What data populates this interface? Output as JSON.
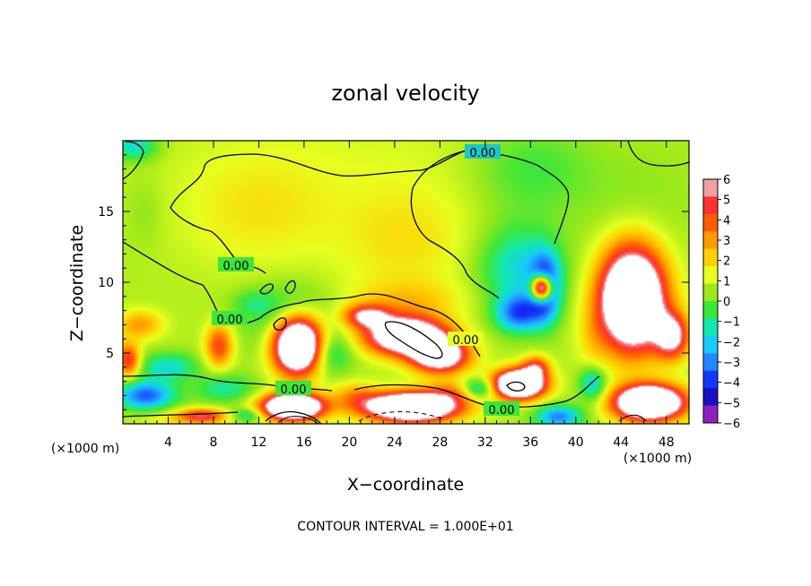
{
  "chart_data": {
    "type": "heatmap",
    "title": "zonal velocity",
    "xlabel": "X−coordinate",
    "ylabel": "Z−coordinate",
    "x_unit": "(×1000 m)",
    "y_unit": "(×1000 m)",
    "xlim": [
      0,
      50
    ],
    "ylim": [
      0,
      20
    ],
    "x_ticks": [
      "4",
      "8",
      "12",
      "16",
      "20",
      "24",
      "28",
      "32",
      "36",
      "40",
      "44",
      "48"
    ],
    "y_ticks": [
      "5",
      "10",
      "15"
    ],
    "colorbar": {
      "range": [
        -6,
        6
      ],
      "levels": [
        "6",
        "5",
        "4",
        "3",
        "2",
        "1",
        "0",
        "−1",
        "−2",
        "−3",
        "−4",
        "−5",
        "−6"
      ],
      "colors": [
        "#f0a0a0",
        "#ff3030",
        "#ff5c00",
        "#ff9a00",
        "#ffd000",
        "#e8ff20",
        "#9ce81a",
        "#3de63a",
        "#12e8b0",
        "#19c8ff",
        "#2288ff",
        "#1238ff",
        "#1a10c0",
        "#8e20c0"
      ],
      "above_max_color": "#ffffff"
    },
    "contour_labels": [
      "0.00",
      "0.00",
      "0.00",
      "0.00",
      "0.00",
      "0.00"
    ],
    "footer": "CONTOUR INTERVAL = 1.000E+01",
    "features": [
      {
        "x": 21,
        "z": 19.4,
        "sx": 16,
        "sz": 4,
        "v": 0.4
      },
      {
        "x": 12,
        "z": 15,
        "sx": 7,
        "sz": 4,
        "v": 1.2
      },
      {
        "x": 25,
        "z": 13,
        "sx": 6,
        "sz": 4,
        "v": 1.3
      },
      {
        "x": 45,
        "z": 16,
        "sx": 6,
        "sz": 4,
        "v": -0.4
      },
      {
        "x": 36,
        "z": 18,
        "sx": 5,
        "sz": 3,
        "v": -1.3
      },
      {
        "x": 35,
        "z": 11,
        "sx": 3.5,
        "sz": 3,
        "v": -2.6
      },
      {
        "x": 37.3,
        "z": 9.6,
        "sx": 1.3,
        "sz": 2.2,
        "v": -5.5
      },
      {
        "x": 35,
        "z": 7.8,
        "sx": 2,
        "sz": 1.3,
        "v": -4.2
      },
      {
        "x": 37,
        "z": 9.6,
        "sx": 0.9,
        "sz": 0.9,
        "v": 12
      },
      {
        "x": 1,
        "z": 19.6,
        "sx": 2,
        "sz": 1,
        "v": -2.5
      },
      {
        "x": 2,
        "z": 15,
        "sx": 1.5,
        "sz": 2.5,
        "v": -0.5
      },
      {
        "x": 25,
        "z": 6.2,
        "sx": 3.5,
        "sz": 1.3,
        "v": 9.5
      },
      {
        "x": 28,
        "z": 4.8,
        "sx": 2.5,
        "sz": 1.2,
        "v": 8
      },
      {
        "x": 21.5,
        "z": 7.6,
        "sx": 2,
        "sz": 0.8,
        "v": 5
      },
      {
        "x": 25,
        "z": 8.6,
        "sx": 5,
        "sz": 1.5,
        "v": 1.6
      },
      {
        "x": 15.5,
        "z": 5.6,
        "sx": 2.2,
        "sz": 2,
        "v": 13
      },
      {
        "x": 15,
        "z": 7,
        "sx": 3.5,
        "sz": 2.5,
        "v": -2.5
      },
      {
        "x": 18,
        "z": 5,
        "sx": 2,
        "sz": 1.5,
        "v": -2.5
      },
      {
        "x": 15,
        "z": 1.2,
        "sx": 2.6,
        "sz": 0.9,
        "v": 12
      },
      {
        "x": 25.5,
        "z": 1.2,
        "sx": 4,
        "sz": 1,
        "v": 12
      },
      {
        "x": 20.5,
        "z": 2,
        "sx": 2,
        "sz": 1,
        "v": 2
      },
      {
        "x": 29,
        "z": 2.3,
        "sx": 2,
        "sz": 0.8,
        "v": 2
      },
      {
        "x": 35,
        "z": 2.8,
        "sx": 2.2,
        "sz": 1,
        "v": 12
      },
      {
        "x": 36.5,
        "z": 4,
        "sx": 1.2,
        "sz": 0.8,
        "v": 4
      },
      {
        "x": 31.5,
        "z": 2.5,
        "sx": 1.5,
        "sz": 0.7,
        "v": -3
      },
      {
        "x": 38.5,
        "z": 0.5,
        "sx": 2,
        "sz": 0.8,
        "v": -4
      },
      {
        "x": 45,
        "z": 8.8,
        "sx": 2.8,
        "sz": 3.5,
        "v": 12
      },
      {
        "x": 48.5,
        "z": 6.2,
        "sx": 1.5,
        "sz": 1.6,
        "v": 6
      },
      {
        "x": 46.5,
        "z": 1.5,
        "sx": 3,
        "sz": 1.2,
        "v": 12
      },
      {
        "x": 41.5,
        "z": 2.8,
        "sx": 1.2,
        "sz": 1.2,
        "v": -3
      },
      {
        "x": 41.5,
        "z": 6,
        "sx": 1.5,
        "sz": 2.5,
        "v": 1
      },
      {
        "x": 2,
        "z": 2,
        "sx": 2.5,
        "sz": 1,
        "v": -4.5
      },
      {
        "x": 4,
        "z": 4,
        "sx": 2.5,
        "sz": 1,
        "v": -2.5
      },
      {
        "x": 0.5,
        "z": 4.5,
        "sx": 1,
        "sz": 1.2,
        "v": 4.5
      },
      {
        "x": 1.5,
        "z": 7,
        "sx": 2,
        "sz": 1,
        "v": 2.5
      },
      {
        "x": 8.5,
        "z": 5.5,
        "sx": 1.2,
        "sz": 1.5,
        "v": 4
      },
      {
        "x": 9,
        "z": 2.5,
        "sx": 2.5,
        "sz": 1,
        "v": -2
      },
      {
        "x": 6,
        "z": 0.4,
        "sx": 4,
        "sz": 0.6,
        "v": 1.5
      },
      {
        "x": 11.5,
        "z": 8.5,
        "sx": 2,
        "sz": 1,
        "v": -1.2
      },
      {
        "x": 7,
        "z": 0.6,
        "sx": 2,
        "sz": 0.5,
        "v": 3.5
      },
      {
        "x": 11,
        "z": 0.6,
        "sx": 1.5,
        "sz": 0.5,
        "v": -2.5
      }
    ]
  }
}
